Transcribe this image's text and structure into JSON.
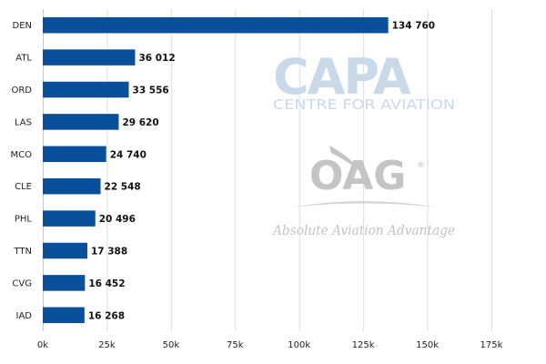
{
  "chart_data": {
    "type": "bar",
    "orientation": "horizontal",
    "categories": [
      "DEN",
      "ATL",
      "ORD",
      "LAS",
      "MCO",
      "CLE",
      "PHL",
      "TTN",
      "CVG",
      "IAD"
    ],
    "values": [
      134760,
      36012,
      33556,
      29620,
      24740,
      22548,
      20496,
      17388,
      16452,
      16268
    ],
    "value_labels": [
      "134 760",
      "36 012",
      "33 556",
      "29 620",
      "24 740",
      "22 548",
      "20 496",
      "17 388",
      "16 452",
      "16 268"
    ],
    "x_ticks": [
      0,
      25000,
      50000,
      75000,
      100000,
      125000,
      150000,
      175000
    ],
    "x_tick_labels": [
      "0k",
      "25k",
      "50k",
      "75k",
      "100k",
      "125k",
      "150k",
      "175k"
    ],
    "xlim": [
      0,
      175000
    ],
    "grid": "vertical",
    "bar_color": "#0a4f9c",
    "title": "",
    "xlabel": "",
    "ylabel": ""
  },
  "watermarks": {
    "capa_logo": "CAPA",
    "capa_subtitle": "CENTRE FOR AVIATION",
    "oag_logo": "OAG",
    "oag_registered": "®",
    "oag_tagline": "Absolute Aviation Advantage"
  }
}
